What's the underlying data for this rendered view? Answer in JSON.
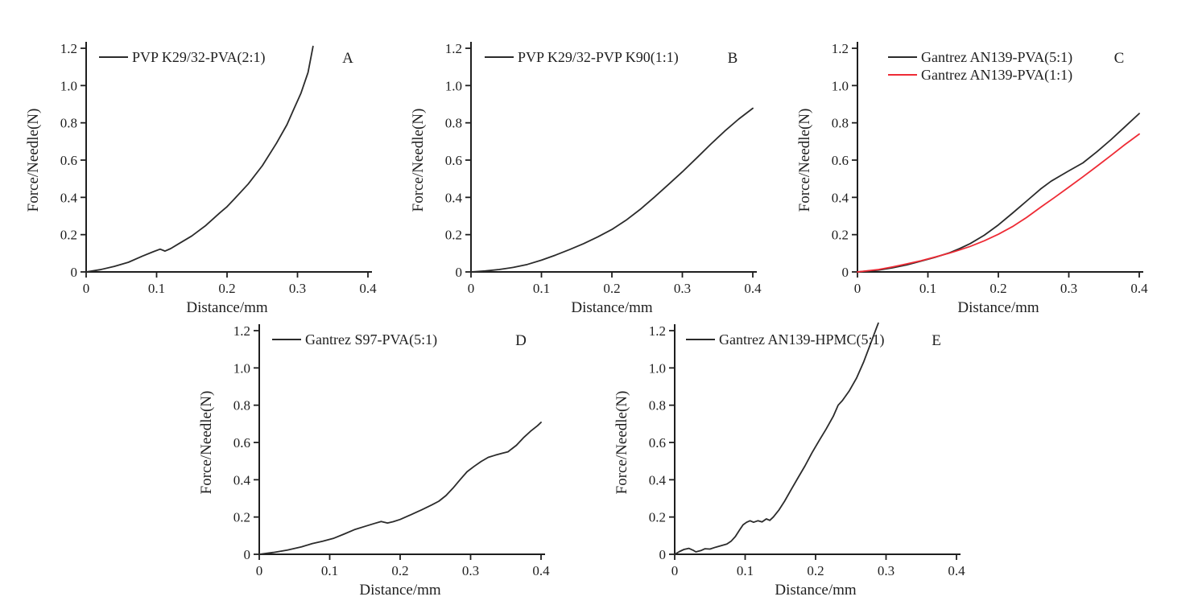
{
  "figure": {
    "background": "#ffffff",
    "axis_color": "#1f1f1f",
    "text_color": "#1f1f1f"
  },
  "chart_data": [
    {
      "panel_label": "A",
      "type": "line",
      "xlabel": "Distance/mm",
      "ylabel": "Force/Needle(N)",
      "xlim": [
        0,
        0.4
      ],
      "ylim": [
        0,
        1.2
      ],
      "grid": false,
      "legend_position": "top-left",
      "legend_x_offset": 16,
      "xticks": {
        "values": [
          0,
          0.1,
          0.2,
          0.3,
          0.4
        ],
        "labels": [
          "0",
          "0.1",
          "0.2",
          "0.3",
          "0.4"
        ]
      },
      "yticks": {
        "values": [
          0,
          0.2,
          0.4,
          0.6,
          0.8,
          1.0,
          1.2
        ],
        "labels": [
          "0",
          "0.2",
          "0.4",
          "0.6",
          "0.8",
          "1.0",
          "1.2"
        ]
      },
      "series": [
        {
          "name": "PVP K29/32-PVA(2:1)",
          "color": "#2b2b2b",
          "points": [
            [
              0,
              0
            ],
            [
              0.02,
              0.012
            ],
            [
              0.04,
              0.03
            ],
            [
              0.06,
              0.052
            ],
            [
              0.08,
              0.085
            ],
            [
              0.095,
              0.108
            ],
            [
              0.105,
              0.122
            ],
            [
              0.112,
              0.112
            ],
            [
              0.12,
              0.125
            ],
            [
              0.13,
              0.148
            ],
            [
              0.15,
              0.193
            ],
            [
              0.17,
              0.25
            ],
            [
              0.19,
              0.318
            ],
            [
              0.2,
              0.35
            ],
            [
              0.21,
              0.39
            ],
            [
              0.23,
              0.472
            ],
            [
              0.25,
              0.57
            ],
            [
              0.27,
              0.69
            ],
            [
              0.285,
              0.79
            ],
            [
              0.295,
              0.875
            ],
            [
              0.305,
              0.96
            ],
            [
              0.315,
              1.07
            ],
            [
              0.322,
              1.21
            ]
          ]
        }
      ]
    },
    {
      "panel_label": "B",
      "type": "line",
      "xlabel": "Distance/mm",
      "ylabel": "Force/Needle(N)",
      "xlim": [
        0,
        0.4
      ],
      "ylim": [
        0,
        1.2
      ],
      "grid": false,
      "legend_position": "top-left",
      "legend_x_offset": 17,
      "xticks": {
        "values": [
          0,
          0.1,
          0.2,
          0.3,
          0.4
        ],
        "labels": [
          "0",
          "0.1",
          "0.2",
          "0.3",
          "0.4"
        ]
      },
      "yticks": {
        "values": [
          0,
          0.2,
          0.4,
          0.6,
          0.8,
          1.0,
          1.2
        ],
        "labels": [
          "0",
          "0.2",
          "0.4",
          "0.6",
          "0.8",
          "1.0",
          "1.2"
        ]
      },
      "series": [
        {
          "name": "PVP K29/32-PVP K90(1:1)",
          "color": "#2b2b2b",
          "points": [
            [
              0,
              0
            ],
            [
              0.02,
              0.005
            ],
            [
              0.04,
              0.013
            ],
            [
              0.06,
              0.024
            ],
            [
              0.08,
              0.04
            ],
            [
              0.1,
              0.063
            ],
            [
              0.12,
              0.09
            ],
            [
              0.14,
              0.12
            ],
            [
              0.16,
              0.152
            ],
            [
              0.18,
              0.188
            ],
            [
              0.2,
              0.228
            ],
            [
              0.22,
              0.277
            ],
            [
              0.24,
              0.335
            ],
            [
              0.26,
              0.4
            ],
            [
              0.28,
              0.468
            ],
            [
              0.3,
              0.537
            ],
            [
              0.32,
              0.61
            ],
            [
              0.34,
              0.684
            ],
            [
              0.36,
              0.755
            ],
            [
              0.38,
              0.82
            ],
            [
              0.4,
              0.878
            ]
          ]
        }
      ]
    },
    {
      "panel_label": "C",
      "type": "line",
      "xlabel": "Distance/mm",
      "ylabel": "Force/Needle(N)",
      "xlim": [
        0,
        0.4
      ],
      "ylim": [
        0,
        1.2
      ],
      "grid": false,
      "legend_position": "top-left",
      "legend_x_offset": 38,
      "xticks": {
        "values": [
          0,
          0.1,
          0.2,
          0.3,
          0.4
        ],
        "labels": [
          "0",
          "0.1",
          "0.2",
          "0.3",
          "0.4"
        ]
      },
      "yticks": {
        "values": [
          0,
          0.2,
          0.4,
          0.6,
          0.8,
          1.0,
          1.2
        ],
        "labels": [
          "0",
          "0.2",
          "0.4",
          "0.6",
          "0.8",
          "1.0",
          "1.2"
        ]
      },
      "series": [
        {
          "name": "Gantrez AN139-PVA(5:1)",
          "color": "#2b2b2b",
          "points": [
            [
              0,
              0
            ],
            [
              0.03,
              0.01
            ],
            [
              0.05,
              0.022
            ],
            [
              0.07,
              0.038
            ],
            [
              0.09,
              0.058
            ],
            [
              0.11,
              0.078
            ],
            [
              0.13,
              0.102
            ],
            [
              0.145,
              0.125
            ],
            [
              0.16,
              0.152
            ],
            [
              0.18,
              0.197
            ],
            [
              0.2,
              0.252
            ],
            [
              0.22,
              0.315
            ],
            [
              0.24,
              0.38
            ],
            [
              0.26,
              0.445
            ],
            [
              0.275,
              0.487
            ],
            [
              0.29,
              0.52
            ],
            [
              0.3,
              0.542
            ],
            [
              0.32,
              0.585
            ],
            [
              0.34,
              0.645
            ],
            [
              0.36,
              0.71
            ],
            [
              0.38,
              0.78
            ],
            [
              0.4,
              0.85
            ]
          ]
        },
        {
          "name": "Gantrez AN139-PVA(1:1)",
          "color": "#ee2b35",
          "points": [
            [
              0,
              0
            ],
            [
              0.03,
              0.013
            ],
            [
              0.05,
              0.027
            ],
            [
              0.07,
              0.043
            ],
            [
              0.09,
              0.06
            ],
            [
              0.11,
              0.08
            ],
            [
              0.13,
              0.1
            ],
            [
              0.145,
              0.118
            ],
            [
              0.16,
              0.137
            ],
            [
              0.18,
              0.167
            ],
            [
              0.2,
              0.202
            ],
            [
              0.22,
              0.243
            ],
            [
              0.24,
              0.292
            ],
            [
              0.26,
              0.347
            ],
            [
              0.28,
              0.4
            ],
            [
              0.3,
              0.455
            ],
            [
              0.32,
              0.51
            ],
            [
              0.34,
              0.567
            ],
            [
              0.36,
              0.625
            ],
            [
              0.38,
              0.684
            ],
            [
              0.4,
              0.74
            ]
          ]
        }
      ]
    },
    {
      "panel_label": "D",
      "type": "line",
      "xlabel": "Distance/mm",
      "ylabel": "Force/Needle(N)",
      "xlim": [
        0,
        0.4
      ],
      "ylim": [
        0,
        1.2
      ],
      "grid": false,
      "legend_position": "top-left",
      "legend_x_offset": 16,
      "xticks": {
        "values": [
          0,
          0.1,
          0.2,
          0.3,
          0.4
        ],
        "labels": [
          "0",
          "0.1",
          "0.2",
          "0.3",
          "0.4"
        ]
      },
      "yticks": {
        "values": [
          0,
          0.2,
          0.4,
          0.6,
          0.8,
          1.0,
          1.2
        ],
        "labels": [
          "0",
          "0.2",
          "0.4",
          "0.6",
          "0.8",
          "1.0",
          "1.2"
        ]
      },
      "series": [
        {
          "name": "Gantrez S97-PVA(5:1)",
          "color": "#2b2b2b",
          "points": [
            [
              0,
              0
            ],
            [
              0.02,
              0.01
            ],
            [
              0.04,
              0.023
            ],
            [
              0.06,
              0.04
            ],
            [
              0.075,
              0.057
            ],
            [
              0.09,
              0.07
            ],
            [
              0.105,
              0.085
            ],
            [
              0.12,
              0.108
            ],
            [
              0.135,
              0.132
            ],
            [
              0.15,
              0.15
            ],
            [
              0.163,
              0.165
            ],
            [
              0.173,
              0.176
            ],
            [
              0.182,
              0.168
            ],
            [
              0.19,
              0.175
            ],
            [
              0.2,
              0.187
            ],
            [
              0.215,
              0.212
            ],
            [
              0.23,
              0.238
            ],
            [
              0.245,
              0.265
            ],
            [
              0.255,
              0.285
            ],
            [
              0.265,
              0.315
            ],
            [
              0.275,
              0.355
            ],
            [
              0.285,
              0.4
            ],
            [
              0.295,
              0.443
            ],
            [
              0.305,
              0.472
            ],
            [
              0.315,
              0.498
            ],
            [
              0.325,
              0.52
            ],
            [
              0.335,
              0.532
            ],
            [
              0.345,
              0.542
            ],
            [
              0.353,
              0.55
            ],
            [
              0.365,
              0.585
            ],
            [
              0.375,
              0.625
            ],
            [
              0.385,
              0.66
            ],
            [
              0.395,
              0.69
            ],
            [
              0.4,
              0.708
            ]
          ]
        }
      ]
    },
    {
      "panel_label": "E",
      "type": "line",
      "xlabel": "Distance/mm",
      "ylabel": "Force/Needle(N)",
      "xlim": [
        0,
        0.4
      ],
      "ylim": [
        0,
        1.2
      ],
      "grid": false,
      "legend_position": "top-left",
      "legend_x_offset": 14,
      "xticks": {
        "values": [
          0,
          0.1,
          0.2,
          0.3,
          0.4
        ],
        "labels": [
          "0",
          "0.1",
          "0.2",
          "0.3",
          "0.4"
        ]
      },
      "yticks": {
        "values": [
          0,
          0.2,
          0.4,
          0.6,
          0.8,
          1.0,
          1.2
        ],
        "labels": [
          "0",
          "0.2",
          "0.4",
          "0.6",
          "0.8",
          "1.0",
          "1.2"
        ]
      },
      "series": [
        {
          "name": "Gantrez AN139-HPMC(5:1)",
          "color": "#2b2b2b",
          "points": [
            [
              0,
              0
            ],
            [
              0.007,
              0.015
            ],
            [
              0.013,
              0.026
            ],
            [
              0.02,
              0.032
            ],
            [
              0.026,
              0.022
            ],
            [
              0.03,
              0.013
            ],
            [
              0.037,
              0.02
            ],
            [
              0.043,
              0.03
            ],
            [
              0.05,
              0.028
            ],
            [
              0.058,
              0.038
            ],
            [
              0.066,
              0.046
            ],
            [
              0.074,
              0.055
            ],
            [
              0.08,
              0.07
            ],
            [
              0.086,
              0.095
            ],
            [
              0.092,
              0.13
            ],
            [
              0.097,
              0.158
            ],
            [
              0.102,
              0.172
            ],
            [
              0.107,
              0.18
            ],
            [
              0.112,
              0.172
            ],
            [
              0.118,
              0.18
            ],
            [
              0.124,
              0.174
            ],
            [
              0.13,
              0.19
            ],
            [
              0.135,
              0.182
            ],
            [
              0.14,
              0.2
            ],
            [
              0.148,
              0.238
            ],
            [
              0.156,
              0.285
            ],
            [
              0.165,
              0.345
            ],
            [
              0.175,
              0.41
            ],
            [
              0.185,
              0.475
            ],
            [
              0.195,
              0.545
            ],
            [
              0.205,
              0.61
            ],
            [
              0.215,
              0.672
            ],
            [
              0.225,
              0.74
            ],
            [
              0.232,
              0.8
            ],
            [
              0.238,
              0.825
            ],
            [
              0.248,
              0.878
            ],
            [
              0.258,
              0.945
            ],
            [
              0.268,
              1.03
            ],
            [
              0.278,
              1.13
            ],
            [
              0.286,
              1.21
            ],
            [
              0.289,
              1.24
            ]
          ]
        }
      ]
    }
  ]
}
